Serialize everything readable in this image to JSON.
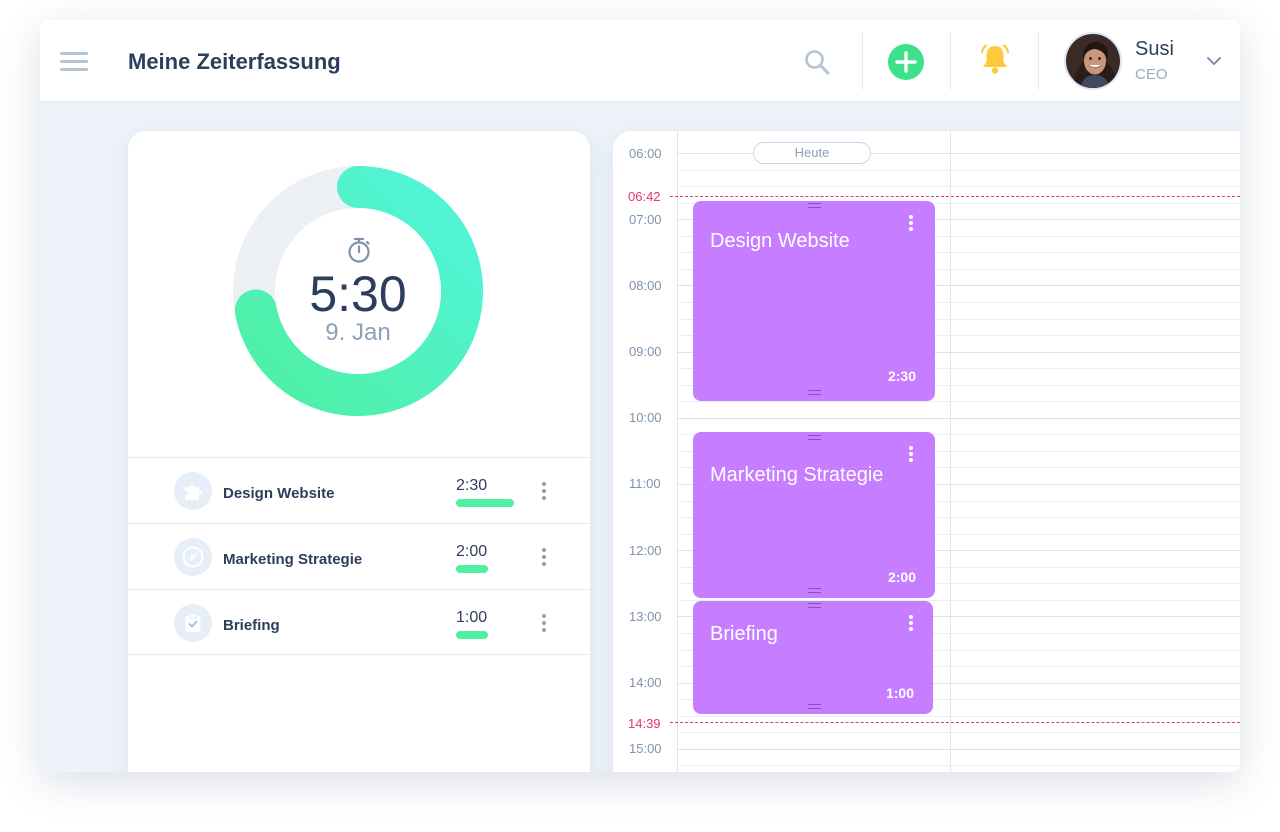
{
  "header": {
    "title": "Meine Zeiterfassung",
    "icons": {
      "menu": "hamburger-icon",
      "search": "search-icon",
      "add": "plus-circle-icon",
      "notifications": "bell-icon",
      "dropdown": "chevron-down-icon"
    },
    "colors": {
      "add": "#3ee08a",
      "bell": "#ffc93c"
    }
  },
  "user": {
    "name": "Susi",
    "role": "CEO"
  },
  "timer": {
    "value": "5:30",
    "date": "9. Jan",
    "progress_fraction": 0.72,
    "icon": "stopwatch-icon",
    "gradient": [
      "#4ef0a2",
      "#52f4dc"
    ]
  },
  "tasks": [
    {
      "name": "Design Website",
      "time": "2:30",
      "bar_fraction": 1.0,
      "icon": "puzzle-icon"
    },
    {
      "name": "Marketing Strategie",
      "time": "2:00",
      "bar_fraction": 0.55,
      "icon": "compass-icon"
    },
    {
      "name": "Briefing",
      "time": "1:00",
      "bar_fraction": 0.55,
      "icon": "clipboard-check-icon"
    }
  ],
  "calendar": {
    "today_label": "Heute",
    "hours": [
      "06:00",
      "07:00",
      "08:00",
      "09:00",
      "10:00",
      "11:00",
      "12:00",
      "13:00",
      "14:00",
      "15:00"
    ],
    "markers": [
      "06:42",
      "14:39"
    ],
    "marker_color": "#e2357a",
    "events": [
      {
        "title": "Design Website",
        "duration": "2:30",
        "color": "#c77dff"
      },
      {
        "title": "Marketing Strategie",
        "duration": "2:00",
        "color": "#c77dff"
      },
      {
        "title": "Briefing",
        "duration": "1:00",
        "color": "#c77dff"
      }
    ]
  }
}
